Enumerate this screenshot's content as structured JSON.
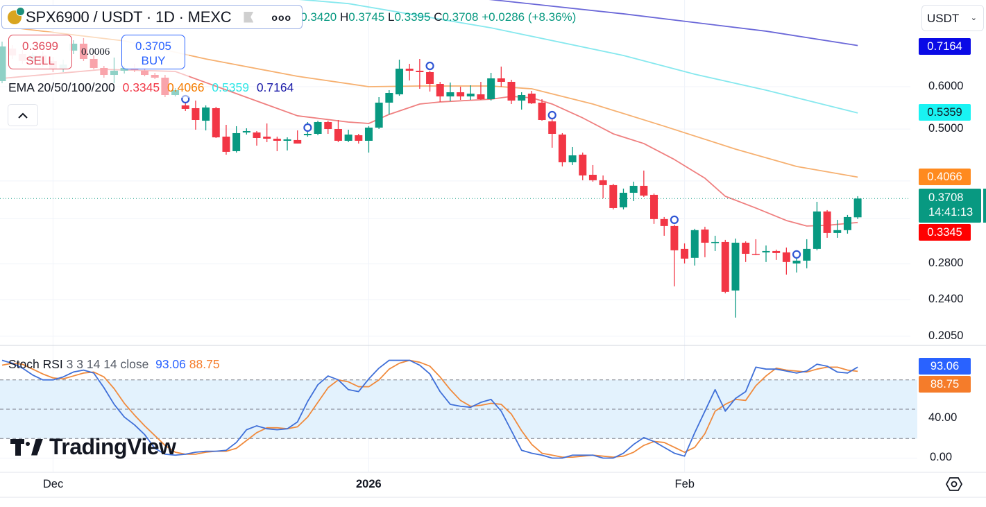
{
  "header": {
    "symbol_title": "SPX6900 / USDT · 1D · MEXC",
    "more_label": "ooo",
    "ohlc": {
      "o_label": "O",
      "o": "0.3420",
      "h_label": "H",
      "h": "0.3745",
      "l_label": "L",
      "l": "0.3395",
      "c_label": "C",
      "c": "0.3708",
      "change": "+0.0286 (+8.36%)"
    }
  },
  "trade": {
    "sell_price": "0.3699",
    "sell_label": "SELL",
    "spread": "0.0006",
    "buy_price": "0.3705",
    "buy_label": "BUY"
  },
  "ema_legend": {
    "title": "EMA 20/50/100/200",
    "v20": "0.3345",
    "v50": "0.4066",
    "v100": "0.5359",
    "v200": "0.7164"
  },
  "collapse_icon": "chevron-up-icon",
  "stoch_legend": {
    "title": "Stoch RSI",
    "params": "3 3 14 14 close",
    "k": "93.06",
    "d": "88.75"
  },
  "currency_select": {
    "value": "USDT"
  },
  "price_axis": {
    "ticks": [
      "0.6000",
      "0.5000",
      "0.2800",
      "0.2400",
      "0.2050"
    ],
    "badges": {
      "ema200": "0.7164",
      "ema100": "0.5359",
      "ema50": "0.4066",
      "last": "0.3708",
      "countdown": "14:41:13",
      "ema20": "0.3345"
    }
  },
  "stoch_axis": {
    "ticks": [
      "40.00",
      "0.00"
    ],
    "badges": {
      "k": "93.06",
      "d": "88.75"
    }
  },
  "time_axis": {
    "ticks": [
      {
        "label": "Dec",
        "date": "2025-12-01"
      },
      {
        "label": "2026",
        "date": "2026-01-01"
      },
      {
        "label": "Feb",
        "date": "2026-02-01"
      }
    ]
  },
  "logo": "TradingView",
  "colors": {
    "up": "#089981",
    "down": "#f23645",
    "ema20": "#ef7f7f",
    "ema50": "#f6b070",
    "ema100": "#86e8ee",
    "ema200": "#6a67d8",
    "stoch_k": "#3f6fd8",
    "stoch_d": "#f08a3c",
    "band": "#e3f2fd",
    "ema20_badge": "#ff0000",
    "ema50_badge": "#ff8a1f",
    "ema100_badge": "#19f3f3",
    "ema200_badge": "#0a0ae6",
    "k_badge": "#2962ff",
    "d_badge": "#f57c2a",
    "marker": "#2f55d4"
  },
  "chart_data": {
    "type": "candlestick",
    "price_scale": "log",
    "ylim": [
      0.198,
      0.871
    ],
    "candles_format": [
      "date",
      "open",
      "high",
      "low",
      "close"
    ],
    "candles": [
      [
        "2025-11-26",
        0.6145,
        0.7285,
        0.609,
        0.7134
      ],
      [
        "2025-11-27",
        0.7071,
        0.7177,
        0.6761,
        0.6863
      ],
      [
        "2025-11-28",
        0.6904,
        0.7029,
        0.6621,
        0.6701
      ],
      [
        "2025-11-29",
        0.6701,
        0.6945,
        0.6621,
        0.6863
      ],
      [
        "2025-11-30",
        0.6863,
        0.6987,
        0.6542,
        0.6621
      ],
      [
        "2025-12-01",
        0.6701,
        0.6822,
        0.6388,
        0.6465
      ],
      [
        "2025-12-02",
        0.6465,
        0.6741,
        0.6388,
        0.6601
      ],
      [
        "2025-12-03",
        0.7008,
        0.7329,
        0.6904,
        0.722
      ],
      [
        "2025-12-04",
        0.722,
        0.7395,
        0.6701,
        0.6761
      ],
      [
        "2025-12-05",
        0.6761,
        0.6863,
        0.6465,
        0.6504
      ],
      [
        "2025-12-06",
        0.6504,
        0.6562,
        0.6238,
        0.6312
      ],
      [
        "2025-12-07",
        0.6312,
        0.6801,
        0.609,
        0.6427
      ],
      [
        "2025-12-08",
        0.6427,
        0.6562,
        0.635,
        0.6504
      ],
      [
        "2025-12-09",
        0.6504,
        0.6621,
        0.6388,
        0.6446
      ],
      [
        "2025-12-10",
        0.6427,
        0.6504,
        0.6275,
        0.6312
      ],
      [
        "2025-12-11",
        0.6312,
        0.6369,
        0.62,
        0.6238
      ],
      [
        "2025-12-12",
        0.6238,
        0.6312,
        0.5737,
        0.5789
      ],
      [
        "2025-12-13",
        0.5789,
        0.5964,
        0.5754,
        0.5911
      ],
      [
        "2025-12-14",
        0.5536,
        0.5585,
        0.5405,
        0.5454
      ],
      [
        "2025-12-15",
        0.547,
        0.5652,
        0.4986,
        0.5199
      ],
      [
        "2025-12-16",
        0.5183,
        0.5536,
        0.4971,
        0.5486
      ],
      [
        "2025-12-17",
        0.547,
        0.5503,
        0.4811,
        0.4825
      ],
      [
        "2025-12-18",
        0.484,
        0.5092,
        0.4478,
        0.4533
      ],
      [
        "2025-12-19",
        0.4546,
        0.5062,
        0.4519,
        0.4913
      ],
      [
        "2025-12-20",
        0.4927,
        0.5016,
        0.4883,
        0.4957
      ],
      [
        "2025-12-21",
        0.4927,
        0.4957,
        0.4656,
        0.4811
      ],
      [
        "2025-12-22",
        0.484,
        0.5122,
        0.4726,
        0.4797
      ],
      [
        "2025-12-23",
        0.4797,
        0.484,
        0.4546,
        0.4754
      ],
      [
        "2025-12-24",
        0.4754,
        0.4825,
        0.456,
        0.4783
      ],
      [
        "2025-12-25",
        0.4769,
        0.4971,
        0.4698,
        0.4698
      ],
      [
        "2025-12-26",
        0.4869,
        0.5153,
        0.484,
        0.4898
      ],
      [
        "2025-12-27",
        0.4898,
        0.5183,
        0.4869,
        0.5153
      ],
      [
        "2025-12-28",
        0.5153,
        0.5183,
        0.4898,
        0.5001
      ],
      [
        "2025-12-29",
        0.5001,
        0.5199,
        0.4726,
        0.4754
      ],
      [
        "2025-12-30",
        0.4754,
        0.4986,
        0.4726,
        0.4883
      ],
      [
        "2025-12-31",
        0.4869,
        0.4898,
        0.4698,
        0.4754
      ],
      [
        "2026-01-01",
        0.4754,
        0.5062,
        0.4519,
        0.5031
      ],
      [
        "2026-01-02",
        0.5031,
        0.5737,
        0.5001,
        0.5602
      ],
      [
        "2026-01-03",
        0.5602,
        0.5911,
        0.5325,
        0.5841
      ],
      [
        "2026-01-04",
        0.5806,
        0.6741,
        0.5771,
        0.6484
      ],
      [
        "2026-01-05",
        0.6484,
        0.6621,
        0.6163,
        0.6427
      ],
      [
        "2026-01-06",
        0.6427,
        0.6761,
        0.5946,
        0.6388
      ],
      [
        "2026-01-07",
        0.6388,
        0.6427,
        0.5876,
        0.6072
      ],
      [
        "2026-01-08",
        0.6072,
        0.6127,
        0.5619,
        0.5754
      ],
      [
        "2026-01-09",
        0.5754,
        0.6108,
        0.5635,
        0.5858
      ],
      [
        "2026-01-10",
        0.5858,
        0.6,
        0.5669,
        0.5754
      ],
      [
        "2026-01-11",
        0.5754,
        0.6036,
        0.5669,
        0.5824
      ],
      [
        "2026-01-12",
        0.5806,
        0.6127,
        0.5669,
        0.5686
      ],
      [
        "2026-01-13",
        0.5686,
        0.6369,
        0.5652,
        0.6219
      ],
      [
        "2026-01-14",
        0.6219,
        0.6542,
        0.6,
        0.6127
      ],
      [
        "2026-01-15",
        0.6127,
        0.6182,
        0.5569,
        0.5652
      ],
      [
        "2026-01-16",
        0.5652,
        0.5858,
        0.5437,
        0.5789
      ],
      [
        "2026-01-17",
        0.5824,
        0.5893,
        0.5569,
        0.5585
      ],
      [
        "2026-01-18",
        0.5602,
        0.5686,
        0.5183,
        0.5199
      ],
      [
        "2026-01-19",
        0.5168,
        0.5215,
        0.4614,
        0.4898
      ],
      [
        "2026-01-20",
        0.4883,
        0.4913,
        0.4257,
        0.4334
      ],
      [
        "2026-01-21",
        0.4334,
        0.4628,
        0.4283,
        0.4465
      ],
      [
        "2026-01-22",
        0.4478,
        0.4519,
        0.4011,
        0.4095
      ],
      [
        "2026-01-23",
        0.4107,
        0.4283,
        0.3987,
        0.4011
      ],
      [
        "2026-01-24",
        0.4011,
        0.4095,
        0.3711,
        0.3928
      ],
      [
        "2026-01-25",
        0.3928,
        0.3951,
        0.3538,
        0.3559
      ],
      [
        "2026-01-26",
        0.357,
        0.387,
        0.3538,
        0.3801
      ],
      [
        "2026-01-27",
        0.3801,
        0.3987,
        0.3667,
        0.3916
      ],
      [
        "2026-01-28",
        0.3916,
        0.4182,
        0.3733,
        0.3755
      ],
      [
        "2026-01-29",
        0.3767,
        0.3789,
        0.3324,
        0.3394
      ],
      [
        "2026-01-30",
        0.3394,
        0.3424,
        0.3159,
        0.3294
      ],
      [
        "2026-01-31",
        0.3294,
        0.3314,
        0.2541,
        0.2967
      ],
      [
        "2026-02-01",
        0.2985,
        0.3057,
        0.2804,
        0.2863
      ],
      [
        "2026-02-02",
        0.2872,
        0.3255,
        0.2779,
        0.3236
      ],
      [
        "2026-02-03",
        0.3245,
        0.3284,
        0.288,
        0.3066
      ],
      [
        "2026-02-04",
        0.3066,
        0.3159,
        0.2958,
        0.3075
      ],
      [
        "2026-02-05",
        0.3075,
        0.3103,
        0.2466,
        0.2481
      ],
      [
        "2026-02-06",
        0.2496,
        0.3121,
        0.2221,
        0.3066
      ],
      [
        "2026-02-07",
        0.3066,
        0.3084,
        0.2821,
        0.2923
      ],
      [
        "2026-02-08",
        0.2923,
        0.3112,
        0.2906,
        0.2915
      ],
      [
        "2026-02-09",
        0.2941,
        0.303,
        0.2821,
        0.2958
      ],
      [
        "2026-02-10",
        0.2958,
        0.2976,
        0.2846,
        0.2932
      ],
      [
        "2026-02-11",
        0.2941,
        0.3003,
        0.2673,
        0.2821
      ],
      [
        "2026-02-12",
        0.2804,
        0.2949,
        0.2697,
        0.2838
      ],
      [
        "2026-02-13",
        0.2838,
        0.3112,
        0.2746,
        0.2985
      ],
      [
        "2026-02-14",
        0.2985,
        0.3656,
        0.2967,
        0.3507
      ],
      [
        "2026-02-15",
        0.3507,
        0.3528,
        0.3131,
        0.3197
      ],
      [
        "2026-02-16",
        0.3197,
        0.3383,
        0.3131,
        0.3236
      ],
      [
        "2026-02-17",
        0.3236,
        0.3455,
        0.3188,
        0.3424
      ],
      [
        "2026-02-18",
        0.342,
        0.3745,
        0.3395,
        0.3708
      ]
    ],
    "last_price": 0.3708,
    "ema": [
      {
        "name": "EMA 20",
        "color_key": "ema20",
        "points": [
          [
            "2025-11-26",
            0.6219
          ],
          [
            "2025-12-06",
            0.6465
          ],
          [
            "2025-12-13",
            0.6407
          ],
          [
            "2025-12-25",
            0.5294
          ],
          [
            "2025-12-30",
            0.5153
          ],
          [
            "2026-01-01",
            0.5122
          ],
          [
            "2026-01-03",
            0.5325
          ],
          [
            "2026-01-06",
            0.5569
          ],
          [
            "2026-01-08",
            0.5619
          ],
          [
            "2026-01-13",
            0.5686
          ],
          [
            "2026-01-15",
            0.5754
          ],
          [
            "2026-01-17",
            0.572
          ],
          [
            "2026-01-19",
            0.5569
          ],
          [
            "2026-01-22",
            0.5246
          ],
          [
            "2026-01-25",
            0.4898
          ],
          [
            "2026-01-28",
            0.4698
          ],
          [
            "2026-01-31",
            0.4386
          ],
          [
            "2026-02-03",
            0.4047
          ],
          [
            "2026-02-05",
            0.3744
          ],
          [
            "2026-02-08",
            0.3559
          ],
          [
            "2026-02-11",
            0.3373
          ],
          [
            "2026-02-13",
            0.3294
          ],
          [
            "2026-02-15",
            0.3304
          ],
          [
            "2026-02-18",
            0.3345
          ]
        ]
      },
      {
        "name": "EMA 50",
        "color_key": "ema50",
        "points": [
          [
            "2025-11-26",
            0.778
          ],
          [
            "2025-12-08",
            0.7307
          ],
          [
            "2025-12-16",
            0.6761
          ],
          [
            "2025-12-25",
            0.6275
          ],
          [
            "2026-01-01",
            0.6
          ],
          [
            "2026-01-06",
            0.6018
          ],
          [
            "2026-01-13",
            0.6018
          ],
          [
            "2026-01-17",
            0.5946
          ],
          [
            "2026-01-23",
            0.5569
          ],
          [
            "2026-01-30",
            0.5062
          ],
          [
            "2026-02-06",
            0.4587
          ],
          [
            "2026-02-12",
            0.4257
          ],
          [
            "2026-02-18",
            0.4066
          ]
        ]
      },
      {
        "name": "EMA 100",
        "color_key": "ema100",
        "points": [
          [
            "2025-12-22",
            0.884
          ],
          [
            "2025-12-30",
            0.858
          ],
          [
            "2026-01-13",
            0.773
          ],
          [
            "2026-01-26",
            0.6863
          ],
          [
            "2026-02-02",
            0.6331
          ],
          [
            "2026-02-09",
            0.5911
          ],
          [
            "2026-02-18",
            0.5359
          ]
        ]
      },
      {
        "name": "EMA 200",
        "color_key": "ema200",
        "points": [
          [
            "2026-01-12",
            0.877
          ],
          [
            "2026-01-26",
            0.821
          ],
          [
            "2026-02-09",
            0.762
          ],
          [
            "2026-02-18",
            0.7164
          ]
        ]
      }
    ],
    "signal_markers": [
      "2025-12-14",
      "2025-12-26",
      "2026-01-07",
      "2026-01-19",
      "2026-01-31",
      "2026-02-12"
    ],
    "stoch_rsi": {
      "ylim": [
        0,
        100
      ],
      "levels": [
        80,
        50,
        20
      ],
      "k": [
        100,
        97,
        92,
        85,
        80,
        80,
        83,
        88,
        90,
        87,
        72,
        55,
        42,
        34,
        24,
        10,
        4,
        3,
        4,
        6,
        7,
        7,
        8,
        16,
        29,
        33,
        30,
        29,
        30,
        37,
        58,
        75,
        84,
        80,
        70,
        68,
        81,
        92,
        100,
        100,
        100,
        95,
        86,
        68,
        55,
        53,
        52,
        57,
        60,
        48,
        28,
        8,
        5,
        3,
        0,
        0,
        3,
        3,
        3,
        0,
        0,
        5,
        14,
        21,
        17,
        11,
        5,
        2,
        26,
        48,
        70,
        48,
        61,
        68,
        93,
        91,
        91,
        89,
        87,
        89,
        96,
        94,
        88,
        87,
        93.06
      ],
      "d": [
        95,
        97,
        96,
        91,
        86,
        82,
        81,
        84,
        87,
        88,
        83,
        71,
        56,
        44,
        33,
        23,
        13,
        6,
        4,
        4,
        6,
        7,
        7,
        10,
        18,
        26,
        31,
        31,
        30,
        32,
        42,
        57,
        72,
        80,
        78,
        73,
        73,
        80,
        91,
        97,
        100,
        98,
        94,
        83,
        70,
        59,
        53,
        54,
        56,
        55,
        45,
        28,
        14,
        5,
        3,
        1,
        1,
        2,
        3,
        2,
        1,
        2,
        6,
        13,
        17,
        16,
        11,
        6,
        11,
        25,
        48,
        55,
        60,
        59,
        74,
        84,
        92,
        90,
        89,
        88,
        91,
        93,
        93,
        90,
        88.75
      ]
    }
  }
}
